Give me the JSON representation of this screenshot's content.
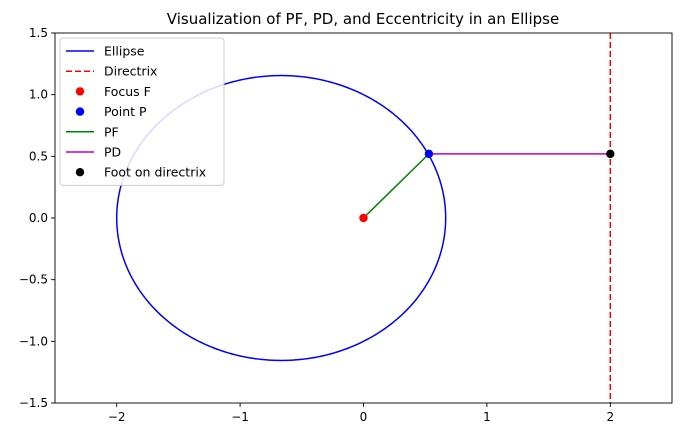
{
  "chart_data": {
    "type": "line",
    "title": "Visualization of PF, PD, and Eccentricity in an Ellipse",
    "xlabel": "",
    "ylabel": "",
    "xlim": [
      -2.5,
      2.5
    ],
    "ylim": [
      -1.5,
      1.5
    ],
    "xticks": [
      -2,
      -1,
      0,
      1,
      2
    ],
    "yticks": [
      -1.5,
      -1.0,
      -0.5,
      0.0,
      0.5,
      1.0,
      1.5
    ],
    "xtick_labels": [
      "−2",
      "−1",
      "0",
      "1",
      "2"
    ],
    "ytick_labels": [
      "−1.5",
      "−1.0",
      "−0.5",
      "0.0",
      "0.5",
      "1.0",
      "1.5"
    ],
    "grid": false,
    "legend_position": "top-left",
    "series": [
      {
        "name": "Ellipse",
        "kind": "ellipse",
        "color": "#0000ff",
        "style": "solid",
        "center": [
          -0.667,
          0.0
        ],
        "semi_axes": [
          1.333,
          1.155
        ]
      },
      {
        "name": "Directrix",
        "kind": "vline",
        "color": "#ff0000",
        "style": "dashed",
        "x": 2.0
      },
      {
        "name": "Focus F",
        "kind": "point",
        "color": "#ff0000",
        "x": 0.0,
        "y": 0.0
      },
      {
        "name": "Point P",
        "kind": "point",
        "color": "#0000ff",
        "x": 0.53,
        "y": 0.52
      },
      {
        "name": "PF",
        "kind": "segment",
        "color": "#008000",
        "style": "solid",
        "x": [
          0.0,
          0.53
        ],
        "y": [
          0.0,
          0.52
        ]
      },
      {
        "name": "PD",
        "kind": "segment",
        "color": "#bf00bf",
        "style": "solid",
        "x": [
          0.53,
          2.0
        ],
        "y": [
          0.52,
          0.52
        ]
      },
      {
        "name": "Foot on directrix",
        "kind": "point",
        "color": "#000000",
        "x": 2.0,
        "y": 0.52
      }
    ]
  }
}
